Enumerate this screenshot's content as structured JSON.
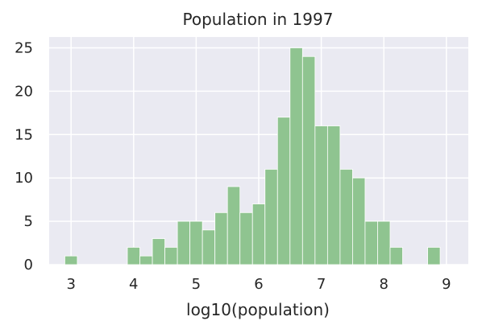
{
  "chart_data": {
    "type": "bar",
    "title": "Population in 1997",
    "xlabel": "log10(population)",
    "ylabel": "",
    "xlim": [
      2.65,
      9.35
    ],
    "ylim": [
      0,
      26.25
    ],
    "bin_width": 0.2,
    "x_ticks": [
      3,
      4,
      5,
      6,
      7,
      8,
      9
    ],
    "y_ticks": [
      0,
      5,
      10,
      15,
      20,
      25
    ],
    "grid": true,
    "background_color": "#eaeaf2",
    "bar_color": "#8fc490",
    "bins_left_edges": [
      2.9,
      3.1,
      3.3,
      3.5,
      3.7,
      3.9,
      4.1,
      4.3,
      4.5,
      4.7,
      4.9,
      5.1,
      5.3,
      5.5,
      5.7,
      5.9,
      6.1,
      6.3,
      6.5,
      6.7,
      6.9,
      7.1,
      7.3,
      7.5,
      7.7,
      7.9,
      8.1,
      8.3,
      8.5,
      8.7,
      8.9
    ],
    "values": [
      1,
      0,
      0,
      0,
      0,
      2,
      1,
      3,
      2,
      5,
      5,
      4,
      6,
      9,
      6,
      7,
      11,
      17,
      25,
      24,
      16,
      16,
      11,
      10,
      5,
      5,
      2,
      0,
      0,
      2,
      0
    ]
  }
}
